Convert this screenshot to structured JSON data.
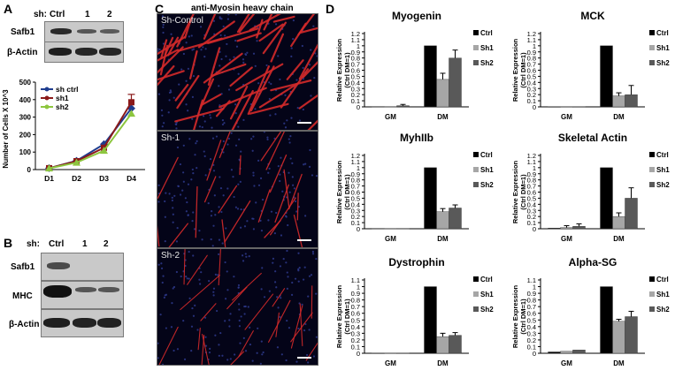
{
  "panel_a": {
    "letter": "A",
    "sh_label": "sh:",
    "lanes": [
      "Ctrl",
      "1",
      "2"
    ],
    "blot_rows": [
      "Safb1",
      "β-Actin"
    ],
    "growth_chart": {
      "ylabel": "Number of Cells X 10^3",
      "categories": [
        "D1",
        "D2",
        "D3",
        "D4"
      ],
      "yticks": [
        "0",
        "100",
        "200",
        "300",
        "400",
        "500"
      ],
      "legend": [
        "sh ctrl",
        "sh1",
        "sh2"
      ]
    }
  },
  "panel_b": {
    "letter": "B",
    "sh_label": "sh:",
    "lanes": [
      "Ctrl",
      "1",
      "2"
    ],
    "blot_rows": [
      "Safb1",
      "MHC",
      "β-Actin"
    ]
  },
  "panel_c": {
    "letter": "C",
    "title": "anti-Myosin heavy chain",
    "images": [
      "Sh-Control",
      "Sh-1",
      "Sh-2"
    ]
  },
  "panel_d": {
    "letter": "D",
    "ylabel_line1": "Relative Expression",
    "ylabel_line2": "(Ctrl DM=1)",
    "yticks": [
      "0",
      "0.1",
      "0.2",
      "0.3",
      "0.4",
      "0.5",
      "0.6",
      "0.7",
      "0.8",
      "0.9",
      "1",
      "1.1",
      "1.2"
    ]
  },
  "colors": {
    "sh_ctrl_line": "#1f3d8f",
    "sh1_line": "#8b1a1a",
    "sh2_line": "#8dc63f",
    "ctrl_bar": "#000000",
    "sh1_bar": "#a6a6a6",
    "sh2_bar": "#595959",
    "myotube_red": "#d42a2a",
    "nuclei_blue": "#2e3a8c"
  },
  "chart_data": [
    {
      "type": "line",
      "categories": [
        "D1",
        "D2",
        "D3",
        "D4"
      ],
      "ylabel": "Number of Cells X 10^3",
      "ylim": [
        0,
        500
      ],
      "series": [
        {
          "name": "sh ctrl",
          "values": [
            8,
            50,
            145,
            350
          ]
        },
        {
          "name": "sh1",
          "values": [
            8,
            48,
            125,
            385
          ]
        },
        {
          "name": "sh2",
          "values": [
            7,
            40,
            108,
            320
          ]
        }
      ],
      "legend": "top-left"
    },
    {
      "type": "bar",
      "title": "Myogenin",
      "categories": [
        "GM",
        "DM"
      ],
      "ylim": [
        0,
        1.2
      ],
      "series": [
        {
          "name": "Ctrl",
          "values": [
            0.005,
            1.0
          ],
          "errors": [
            0.003,
            0.005
          ]
        },
        {
          "name": "Sh1",
          "values": [
            0.005,
            0.45
          ],
          "errors": [
            0.003,
            0.1
          ]
        },
        {
          "name": "Sh2",
          "values": [
            0.02,
            0.8
          ],
          "errors": [
            0.02,
            0.13
          ]
        }
      ]
    },
    {
      "type": "bar",
      "title": "MCK",
      "categories": [
        "GM",
        "DM"
      ],
      "ylim": [
        0,
        1.2
      ],
      "series": [
        {
          "name": "Ctrl",
          "values": [
            0.003,
            1.0
          ],
          "errors": [
            0.002,
            0.005
          ]
        },
        {
          "name": "Sh1",
          "values": [
            0.003,
            0.18
          ],
          "errors": [
            0.002,
            0.05
          ]
        },
        {
          "name": "Sh2",
          "values": [
            0.003,
            0.2
          ],
          "errors": [
            0.002,
            0.15
          ]
        }
      ]
    },
    {
      "type": "bar",
      "title": "MyhIIb",
      "categories": [
        "GM",
        "DM"
      ],
      "ylim": [
        0,
        1.2
      ],
      "series": [
        {
          "name": "Ctrl",
          "values": [
            0.005,
            1.0
          ],
          "errors": [
            0.002,
            0.005
          ]
        },
        {
          "name": "Sh1",
          "values": [
            0.005,
            0.28
          ],
          "errors": [
            0.002,
            0.05
          ]
        },
        {
          "name": "Sh2",
          "values": [
            0.005,
            0.34
          ],
          "errors": [
            0.002,
            0.05
          ]
        }
      ]
    },
    {
      "type": "bar",
      "title": "Skeletal Actin",
      "categories": [
        "GM",
        "DM"
      ],
      "ylim": [
        0,
        1.2
      ],
      "series": [
        {
          "name": "Ctrl",
          "values": [
            0.01,
            1.0
          ],
          "errors": [
            0.005,
            0.005
          ]
        },
        {
          "name": "Sh1",
          "values": [
            0.02,
            0.2
          ],
          "errors": [
            0.03,
            0.06
          ]
        },
        {
          "name": "Sh2",
          "values": [
            0.04,
            0.5
          ],
          "errors": [
            0.04,
            0.17
          ]
        }
      ]
    },
    {
      "type": "bar",
      "title": "Dystrophin",
      "categories": [
        "GM",
        "DM"
      ],
      "ylim": [
        0,
        1.1
      ],
      "series": [
        {
          "name": "Ctrl",
          "values": [
            0.003,
            1.0
          ],
          "errors": [
            0.002,
            0.005
          ]
        },
        {
          "name": "Sh1",
          "values": [
            0.003,
            0.25
          ],
          "errors": [
            0.002,
            0.05
          ]
        },
        {
          "name": "Sh2",
          "values": [
            0.003,
            0.27
          ],
          "errors": [
            0.002,
            0.04
          ]
        }
      ]
    },
    {
      "type": "bar",
      "title": "Alpha-SG",
      "categories": [
        "GM",
        "DM"
      ],
      "ylim": [
        0,
        1.1
      ],
      "series": [
        {
          "name": "Ctrl",
          "values": [
            0.02,
            1.0
          ],
          "errors": [
            0.005,
            0.005
          ]
        },
        {
          "name": "Sh1",
          "values": [
            0.03,
            0.48
          ],
          "errors": [
            0.01,
            0.03
          ]
        },
        {
          "name": "Sh2",
          "values": [
            0.05,
            0.55
          ],
          "errors": [
            0.01,
            0.08
          ]
        }
      ]
    }
  ]
}
